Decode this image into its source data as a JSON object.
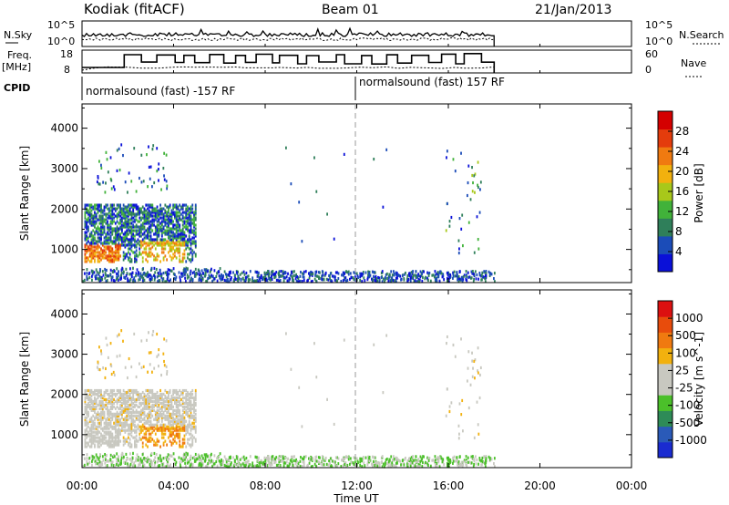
{
  "header": {
    "station": "Kodiak (fitACF)",
    "beam": "Beam 01",
    "date": "21/Jan/2013"
  },
  "nsky_panel": {
    "left_label": "N.Sky",
    "left_ticks": [
      "10^5",
      "10^0"
    ],
    "right_label": "N.Search",
    "right_ticks": [
      "10^5",
      "10^0"
    ]
  },
  "freq_panel": {
    "left_label_1": "Freq.",
    "left_label_2": "[MHz]",
    "left_ticks": [
      "18",
      "8"
    ],
    "right_label": "Nave",
    "right_ticks": [
      "60",
      "0"
    ]
  },
  "cpid": {
    "label": "CPID",
    "segments": [
      {
        "start_hour": 0,
        "text": "normalsound (fast) -157 RF"
      },
      {
        "start_hour": 12,
        "text": "normalsound (fast) 157 RF"
      }
    ]
  },
  "time_axis": {
    "title": "Time UT",
    "range_hours": [
      0,
      24
    ],
    "tick_hours": [
      0,
      4,
      8,
      12,
      16,
      20,
      24
    ],
    "tick_labels": [
      "00:00",
      "04:00",
      "08:00",
      "12:00",
      "16:00",
      "20:00",
      "00:00"
    ],
    "data_end_hour": 18.0
  },
  "chart_data": [
    {
      "type": "heatmap",
      "quantity": "power",
      "ylabel": "Slant Range [km]",
      "ylim": [
        180,
        4600
      ],
      "yticks": [
        1000,
        2000,
        3000,
        4000
      ],
      "colorbar": {
        "label": "Power [dB]",
        "range": [
          0,
          32
        ],
        "ticks": [
          "28",
          "24",
          "20",
          "16",
          "12",
          "8",
          "4"
        ],
        "colors": [
          "#0a10d8",
          "#1b4cb8",
          "#2f7f5a",
          "#41b23a",
          "#a8c81a",
          "#f2b10e",
          "#f07a10",
          "#e43c0c",
          "#d40000"
        ]
      },
      "x_quantity": "time UT [h]",
      "y_quantity": "slant range [km]"
    },
    {
      "type": "heatmap",
      "quantity": "velocity",
      "ylabel": "Slant Range [km]",
      "ylim": [
        180,
        4600
      ],
      "yticks": [
        1000,
        2000,
        3000,
        4000
      ],
      "colorbar": {
        "label": "Velocity [m s^-1]",
        "ticks": [
          "1000",
          "500",
          "100",
          "25",
          "-25",
          "-100",
          "-500",
          "-1000"
        ],
        "colors": [
          "#1a2bd0",
          "#2a5ab8",
          "#2e8b57",
          "#4bc02a",
          "#c8c8c0",
          "#c8c8c0",
          "#f2b10e",
          "#f07a10",
          "#e84c0c",
          "#dc1010"
        ]
      }
    }
  ]
}
